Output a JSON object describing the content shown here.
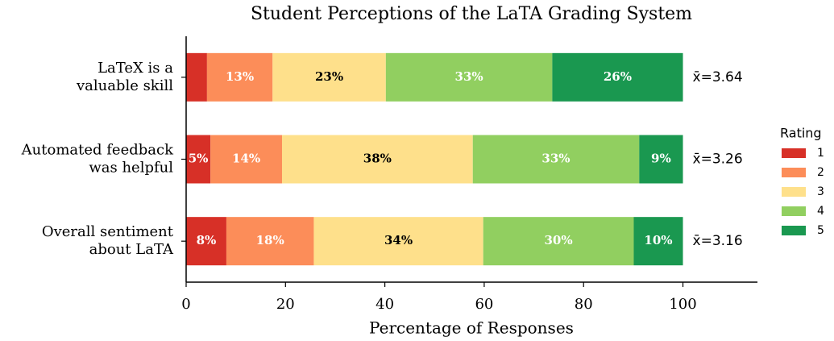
{
  "chart_data": {
    "type": "stacked-barh",
    "title": "Student Perceptions of the LaTA Grading System",
    "xlabel": "Percentage of Responses",
    "categories": [
      [
        "LaTeX is a",
        "valuable skill"
      ],
      [
        "Automated feedback",
        "was helpful"
      ],
      [
        "Overall sentiment",
        "about LaTA"
      ]
    ],
    "series": [
      {
        "name": "1",
        "color": "#d73027",
        "values": [
          4.2,
          4.9,
          8.1
        ],
        "value_labels": [
          null,
          "5%",
          "8%"
        ]
      },
      {
        "name": "2",
        "color": "#fc8d59",
        "values": [
          13.2,
          14.4,
          17.6
        ],
        "value_labels": [
          "13%",
          "14%",
          "18%"
        ]
      },
      {
        "name": "3",
        "color": "#fee08b",
        "values": [
          22.8,
          38.4,
          34.1
        ],
        "value_labels": [
          "23%",
          "38%",
          "34%"
        ]
      },
      {
        "name": "4",
        "color": "#91cf60",
        "values": [
          33.5,
          33.5,
          30.3
        ],
        "value_labels": [
          "33%",
          "33%",
          "30%"
        ]
      },
      {
        "name": "5",
        "color": "#1a9850",
        "values": [
          26.3,
          8.8,
          9.9
        ],
        "value_labels": [
          "26%",
          "9%",
          "10%"
        ]
      }
    ],
    "annotations": [
      "x̄=3.64",
      "x̄=3.26",
      "x̄=3.16"
    ],
    "legend_title": "Rating",
    "legend": "right",
    "xlim": [
      0,
      115
    ],
    "xticks": [
      0,
      20,
      40,
      60,
      80,
      100
    ]
  }
}
